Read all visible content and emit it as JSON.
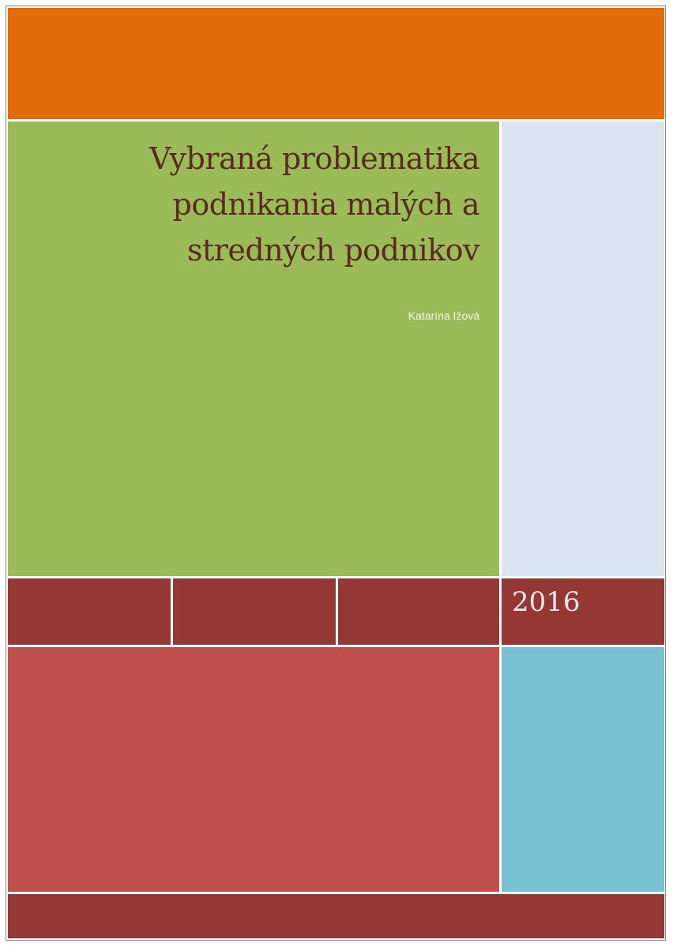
{
  "cover": {
    "title": "Vybraná problematika podnikania malých a stredných podnikov",
    "title_lines": [
      "Vybraná problematika",
      "podnikania malých a",
      "stredných podnikov"
    ],
    "author": "Katarína Ižová",
    "year": "2016"
  },
  "colors": {
    "orange": "#e26b0a",
    "green": "#9bbb59",
    "light_blue": "#dbe5f1",
    "dark_red": "#953735",
    "red": "#c0504d",
    "cyan": "#7ac1d4",
    "title_text": "#5b2a1e"
  }
}
